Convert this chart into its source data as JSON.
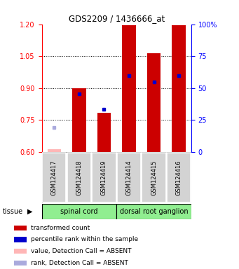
{
  "title": "GDS2209 / 1436666_at",
  "samples": [
    "GSM124417",
    "GSM124418",
    "GSM124419",
    "GSM124414",
    "GSM124415",
    "GSM124416"
  ],
  "red_values": [
    0.614,
    0.898,
    0.785,
    1.195,
    1.063,
    1.196
  ],
  "blue_values": [
    null,
    0.873,
    0.8,
    0.96,
    0.93,
    0.96
  ],
  "absent_red_value": 0.614,
  "absent_blue_value": 0.714,
  "absent_sample_idx": 0,
  "ylim_left": [
    0.6,
    1.2
  ],
  "ylim_right": [
    0,
    100
  ],
  "yticks_left": [
    0.6,
    0.75,
    0.9,
    1.05,
    1.2
  ],
  "yticks_right": [
    0,
    25,
    50,
    75,
    100
  ],
  "ytick_right_labels": [
    "0",
    "25",
    "50",
    "75",
    "100%"
  ],
  "grid_lines": [
    0.75,
    0.9,
    1.05
  ],
  "tissue_groups": [
    {
      "label": "spinal cord",
      "start": 0,
      "end": 3
    },
    {
      "label": "dorsal root ganglion",
      "start": 3,
      "end": 6
    }
  ],
  "tissue_color": "#90EE90",
  "bar_color": "#CC0000",
  "blue_marker_color": "#0000CC",
  "absent_red_color": "#FFB6B6",
  "absent_blue_color": "#AAAADD",
  "bar_width": 0.55,
  "legend_items": [
    {
      "color": "#CC0000",
      "label": "transformed count"
    },
    {
      "color": "#0000CC",
      "label": "percentile rank within the sample"
    },
    {
      "color": "#FFB6B6",
      "label": "value, Detection Call = ABSENT"
    },
    {
      "color": "#AAAADD",
      "label": "rank, Detection Call = ABSENT"
    }
  ]
}
